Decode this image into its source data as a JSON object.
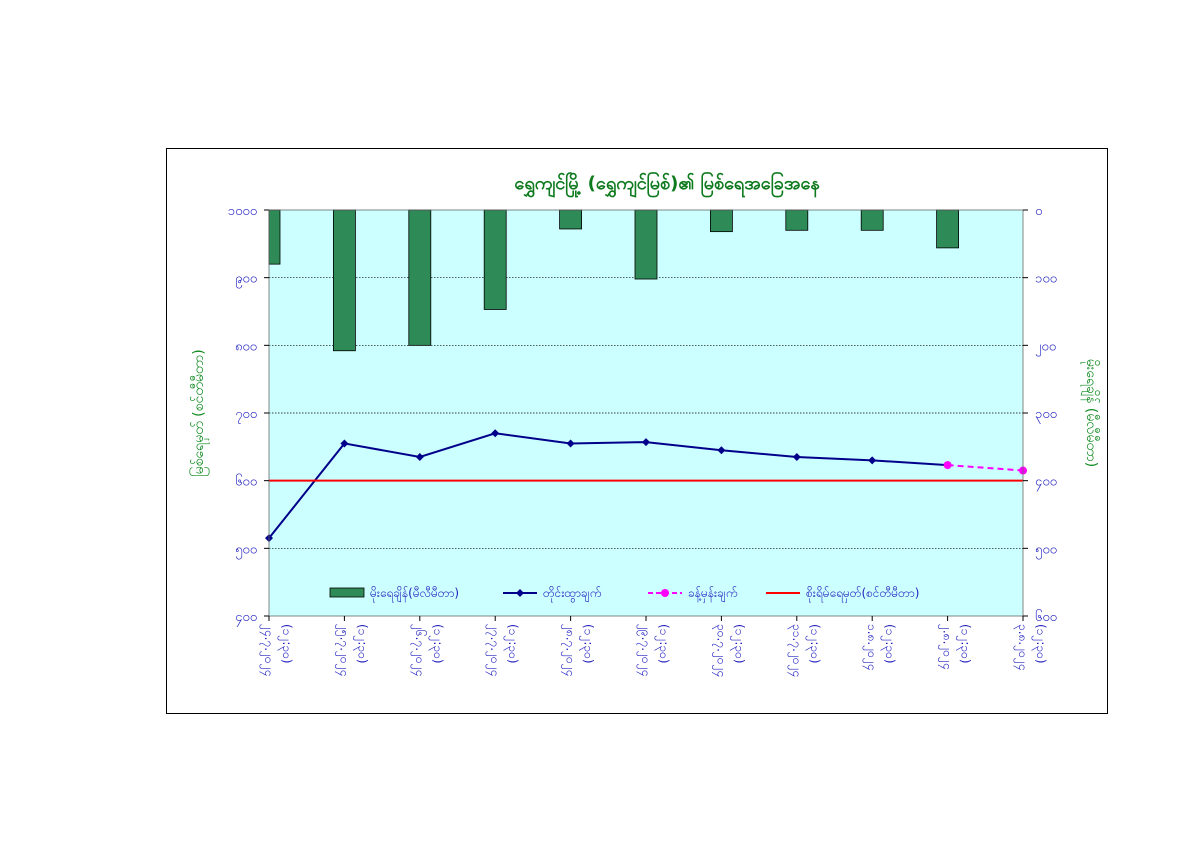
{
  "chart_data": {
    "type": "bar+line",
    "title": "ရွှေကျင်မြို့ (ရွှေကျင်မြစ်)၏ မြစ်ရေအခြေအနေ",
    "ylabel_left": "မြစ်ရေမှတ် (စင်တီမီတာ)",
    "ylabel_right": "မိုးရေချိန် (မီလီမီတာ)",
    "categories": [
      [
        "၂၄.၇.၂၀၂၄",
        "(၁၂:၃၀)"
      ],
      [
        "၂၅.၇.၂၀၂၄",
        "(၁၂:၃၀)"
      ],
      [
        "၂၆.၇.၂၀၂၄",
        "(၁၂:၃၀)"
      ],
      [
        "၂၇.၇.၂၀၂၄",
        "(၁၂:၃၀)"
      ],
      [
        "၂၈.၇.၂၀၂၄",
        "(၁၂:၃၀)"
      ],
      [
        "၂၉.၇.၂၀၂၄",
        "(၁၂:၃၀)"
      ],
      [
        "၃၀.၇.၂၀၂၄",
        "(၁၂:၃၀)"
      ],
      [
        "၃၁.၇.၂၀၂၄",
        "(၁၂:၃၀)"
      ],
      [
        "၁.၈.၂၀၂၄",
        "(၁၂:၃၀)"
      ],
      [
        "၂.၈.၂၀၂၄",
        "(၁၂:၃၀)"
      ],
      [
        "၃.၈.၂၀၂၄",
        "(၁၂:၃၀)"
      ]
    ],
    "left_axis": {
      "min": 400,
      "max": 1000,
      "ticks": [
        400,
        500,
        600,
        700,
        800,
        900,
        1000
      ],
      "tick_labels": [
        "၄၀၀",
        "၅၀၀",
        "၆၀၀",
        "၇၀၀",
        "၈၀၀",
        "၉၀၀",
        "၁၀၀၀"
      ]
    },
    "right_axis": {
      "min": 0,
      "max": 600,
      "inverted": true,
      "ticks": [
        0,
        100,
        200,
        300,
        400,
        500,
        600
      ],
      "tick_labels": [
        "၀",
        "၁၀၀",
        "၂၀၀",
        "၃၀၀",
        "၄၀၀",
        "၅၀၀",
        "၆၀၀"
      ]
    },
    "series": [
      {
        "name": "မိုးရေချိန်(မီလီမီတာ)",
        "kind": "bar",
        "axis": "right",
        "color": "#2e8b57",
        "values": [
          80,
          208,
          200,
          147,
          28,
          102,
          32,
          30,
          30,
          56,
          null
        ]
      },
      {
        "name": "တိုင်းထွာချက်",
        "kind": "line",
        "axis": "left",
        "color": "#00008b",
        "marker": "diamond",
        "values": [
          515,
          655,
          635,
          670,
          655,
          657,
          645,
          635,
          630,
          623,
          null
        ]
      },
      {
        "name": "ခန့်မှန်းချက်",
        "kind": "line",
        "axis": "left",
        "color": "#ff00ff",
        "marker": "circle",
        "dashed": true,
        "values": [
          null,
          null,
          null,
          null,
          null,
          null,
          null,
          null,
          null,
          623,
          615
        ]
      },
      {
        "name": "စိုးရိမ်ရေမှတ်(စင်တီမီတာ)",
        "kind": "hline",
        "axis": "left",
        "color": "#ff0000",
        "value": 600
      }
    ],
    "grid": true,
    "legend_position": "bottom-inside",
    "plot_background": "#ccffff"
  }
}
